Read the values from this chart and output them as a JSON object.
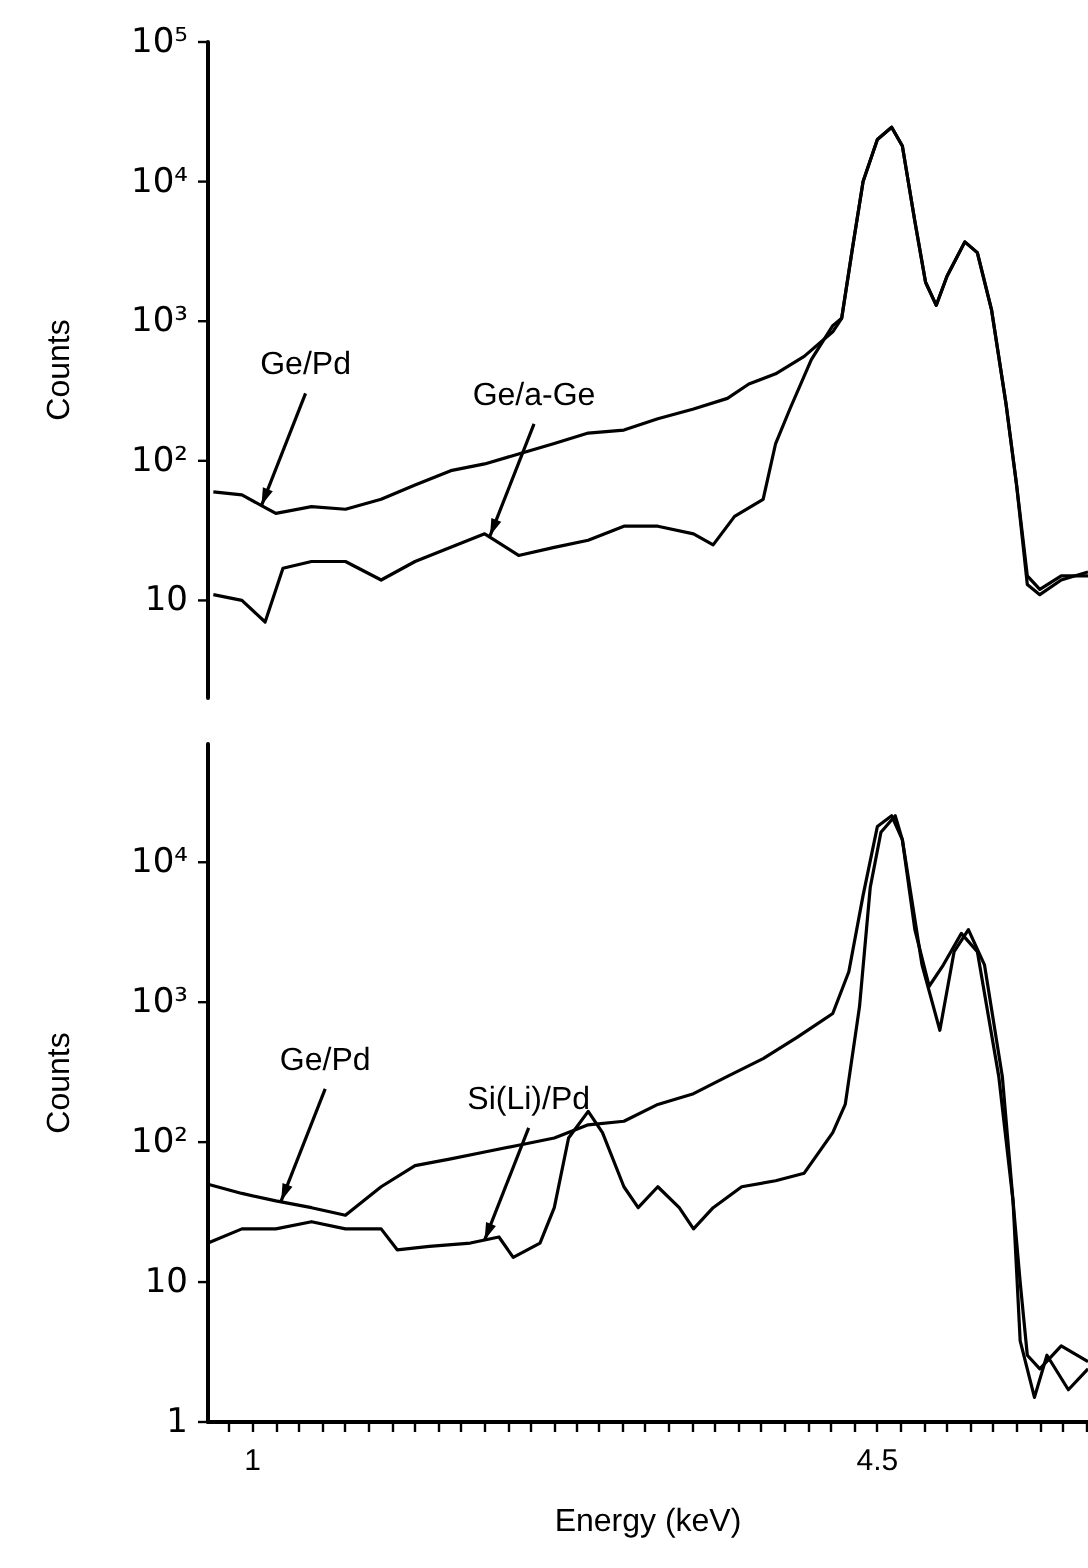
{
  "chart_data": [
    {
      "type": "line",
      "ylabel": "Counts",
      "log": "y",
      "xlim": [
        0.75,
        5.68
      ],
      "ylim": [
        2,
        100000
      ],
      "tick_labels": "y",
      "grid": false,
      "marker": "none",
      "line_style": "solid",
      "yticks": [
        {
          "value": 10,
          "label": "10"
        },
        {
          "value": 100,
          "label": "10²"
        },
        {
          "value": 1000,
          "label": "10³"
        },
        {
          "value": 10000,
          "label": "10⁴"
        },
        {
          "value": 100000,
          "label": "10⁵"
        }
      ],
      "series": [
        {
          "color": "#000000",
          "x": [
            0.78,
            0.94,
            1.13,
            1.33,
            1.52,
            1.72,
            1.91,
            2.11,
            2.3,
            2.49,
            2.69,
            2.88,
            3.08,
            3.27,
            3.47,
            3.66,
            3.78,
            3.93,
            4.09,
            4.25,
            4.3,
            4.36,
            4.42,
            4.5,
            4.58,
            4.64,
            4.71,
            4.77,
            4.83,
            4.89,
            4.99,
            5.06,
            5.14,
            5.22,
            5.28,
            5.34,
            5.41,
            5.53,
            5.68
          ],
          "values": [
            60,
            57,
            42,
            47,
            45,
            53,
            67,
            85,
            95,
            112,
            133,
            158,
            166,
            200,
            235,
            280,
            355,
            420,
            560,
            840,
            1050,
            3300,
            10000,
            20000,
            24500,
            18000,
            5200,
            1900,
            1300,
            2100,
            3700,
            3100,
            1200,
            260,
            67,
            15,
            12,
            15,
            15
          ]
        },
        {
          "color": "#000000",
          "x": [
            0.78,
            0.94,
            1.07,
            1.17,
            1.33,
            1.52,
            1.72,
            1.91,
            2.11,
            2.3,
            2.49,
            2.69,
            2.88,
            3.08,
            3.27,
            3.47,
            3.58,
            3.7,
            3.86,
            3.93,
            4.01,
            4.13,
            4.25,
            4.3,
            4.36,
            4.42,
            4.5,
            4.58,
            4.64,
            4.71,
            4.77,
            4.83,
            4.89,
            4.99,
            5.06,
            5.14,
            5.22,
            5.28,
            5.34,
            5.41,
            5.53,
            5.68
          ],
          "values": [
            11,
            10,
            7,
            17,
            19,
            19,
            14,
            19,
            24,
            30,
            21,
            24,
            27,
            34,
            34,
            30,
            25,
            40,
            53,
            133,
            235,
            530,
            930,
            1050,
            3300,
            10000,
            20000,
            24500,
            18000,
            5200,
            1900,
            1300,
            2100,
            3700,
            3100,
            1200,
            260,
            67,
            13,
            11,
            14,
            16
          ]
        }
      ],
      "annotations": [
        {
          "text": "Ge/Pd",
          "x": 1.05,
          "y": 48
        },
        {
          "text": "Ge/a-Ge",
          "x": 2.33,
          "y": 29
        }
      ]
    },
    {
      "type": "line",
      "xlabel": "Energy (keV)",
      "ylabel": "Counts",
      "log": "y",
      "xlim": [
        0.75,
        5.68
      ],
      "ylim": [
        1,
        70000
      ],
      "grid": false,
      "marker": "none",
      "line_style": "solid",
      "xticks": [
        {
          "value": 0.87,
          "label": null
        },
        1.0,
        {
          "value": 1.13,
          "label": null
        },
        {
          "value": 1.26,
          "label": null
        },
        {
          "value": 1.39,
          "label": null
        },
        {
          "value": 1.52,
          "label": null
        },
        {
          "value": 1.65,
          "label": null
        },
        {
          "value": 1.78,
          "label": null
        },
        {
          "value": 1.91,
          "label": null
        },
        {
          "value": 2.04,
          "label": null
        },
        {
          "value": 2.17,
          "label": null
        },
        {
          "value": 2.3,
          "label": null
        },
        {
          "value": 2.43,
          "label": null
        },
        {
          "value": 2.56,
          "label": null
        },
        {
          "value": 2.69,
          "label": null
        },
        {
          "value": 2.81,
          "label": null
        },
        {
          "value": 2.94,
          "label": null
        },
        {
          "value": 3.07,
          "label": null
        },
        {
          "value": 3.2,
          "label": null
        },
        {
          "value": 3.33,
          "label": null
        },
        {
          "value": 3.46,
          "label": null
        },
        {
          "value": 3.59,
          "label": null
        },
        {
          "value": 3.72,
          "label": null
        },
        {
          "value": 3.85,
          "label": null
        },
        {
          "value": 3.98,
          "label": null
        },
        {
          "value": 4.11,
          "label": null
        },
        {
          "value": 4.24,
          "label": null
        },
        {
          "value": 4.37,
          "label": null
        },
        4.5,
        {
          "value": 4.63,
          "label": null
        },
        {
          "value": 4.76,
          "label": null
        },
        {
          "value": 4.89,
          "label": null
        },
        {
          "value": 5.02,
          "label": null
        },
        {
          "value": 5.15,
          "label": null
        },
        {
          "value": 5.28,
          "label": null
        },
        {
          "value": 5.41,
          "label": null
        },
        {
          "value": 5.54,
          "label": null
        },
        {
          "value": 5.67,
          "label": null
        }
      ],
      "yticks": [
        1,
        10,
        {
          "value": 100,
          "label": "10²"
        },
        {
          "value": 1000,
          "label": "10³"
        },
        {
          "value": 10000,
          "label": "10⁴"
        }
      ],
      "series": [
        {
          "color": "#000000",
          "x": [
            0.75,
            0.94,
            1.13,
            1.33,
            1.52,
            1.72,
            1.91,
            2.11,
            2.3,
            2.49,
            2.69,
            2.88,
            3.08,
            3.27,
            3.47,
            3.66,
            3.86,
            4.05,
            4.25,
            4.34,
            4.42,
            4.5,
            4.58,
            4.64,
            4.71,
            4.79,
            4.87,
            4.97,
            5.06,
            5.18,
            5.26,
            5.3,
            5.34,
            5.41,
            5.53,
            5.68
          ],
          "values": [
            50,
            43,
            38,
            34,
            30,
            48,
            68,
            76,
            85,
            95,
            107,
            133,
            141,
            186,
            222,
            295,
            395,
            560,
            830,
            1650,
            5800,
            18000,
            21500,
            14500,
            3300,
            1300,
            1850,
            3100,
            2300,
            295,
            38,
            10,
            3,
            2.4,
            3.5,
            2.7
          ]
        },
        {
          "color": "#000000",
          "x": [
            0.75,
            0.94,
            1.13,
            1.33,
            1.52,
            1.72,
            1.81,
            1.99,
            2.22,
            2.38,
            2.46,
            2.61,
            2.69,
            2.77,
            2.88,
            2.96,
            3.08,
            3.16,
            3.27,
            3.39,
            3.47,
            3.58,
            3.74,
            3.93,
            4.09,
            4.25,
            4.32,
            4.4,
            4.46,
            4.52,
            4.6,
            4.64,
            4.75,
            4.85,
            4.93,
            5.01,
            5.1,
            5.2,
            5.26,
            5.3,
            5.38,
            5.45,
            5.57,
            5.68
          ],
          "values": [
            19,
            24,
            24,
            27,
            24,
            24,
            17,
            18,
            19,
            21,
            15,
            19,
            34,
            107,
            166,
            117,
            48,
            34,
            48,
            34,
            24,
            34,
            48,
            53,
            60,
            117,
            186,
            930,
            6600,
            16400,
            21500,
            14500,
            1850,
            630,
            2300,
            3300,
            1850,
            295,
            38,
            3.8,
            1.5,
            3,
            1.7,
            2.4
          ]
        }
      ],
      "annotations": [
        {
          "text": "Ge/Pd",
          "x": 1.16,
          "y": 38
        },
        {
          "text": "Si(Li)/Pd",
          "x": 2.3,
          "y": 20
        }
      ]
    }
  ]
}
